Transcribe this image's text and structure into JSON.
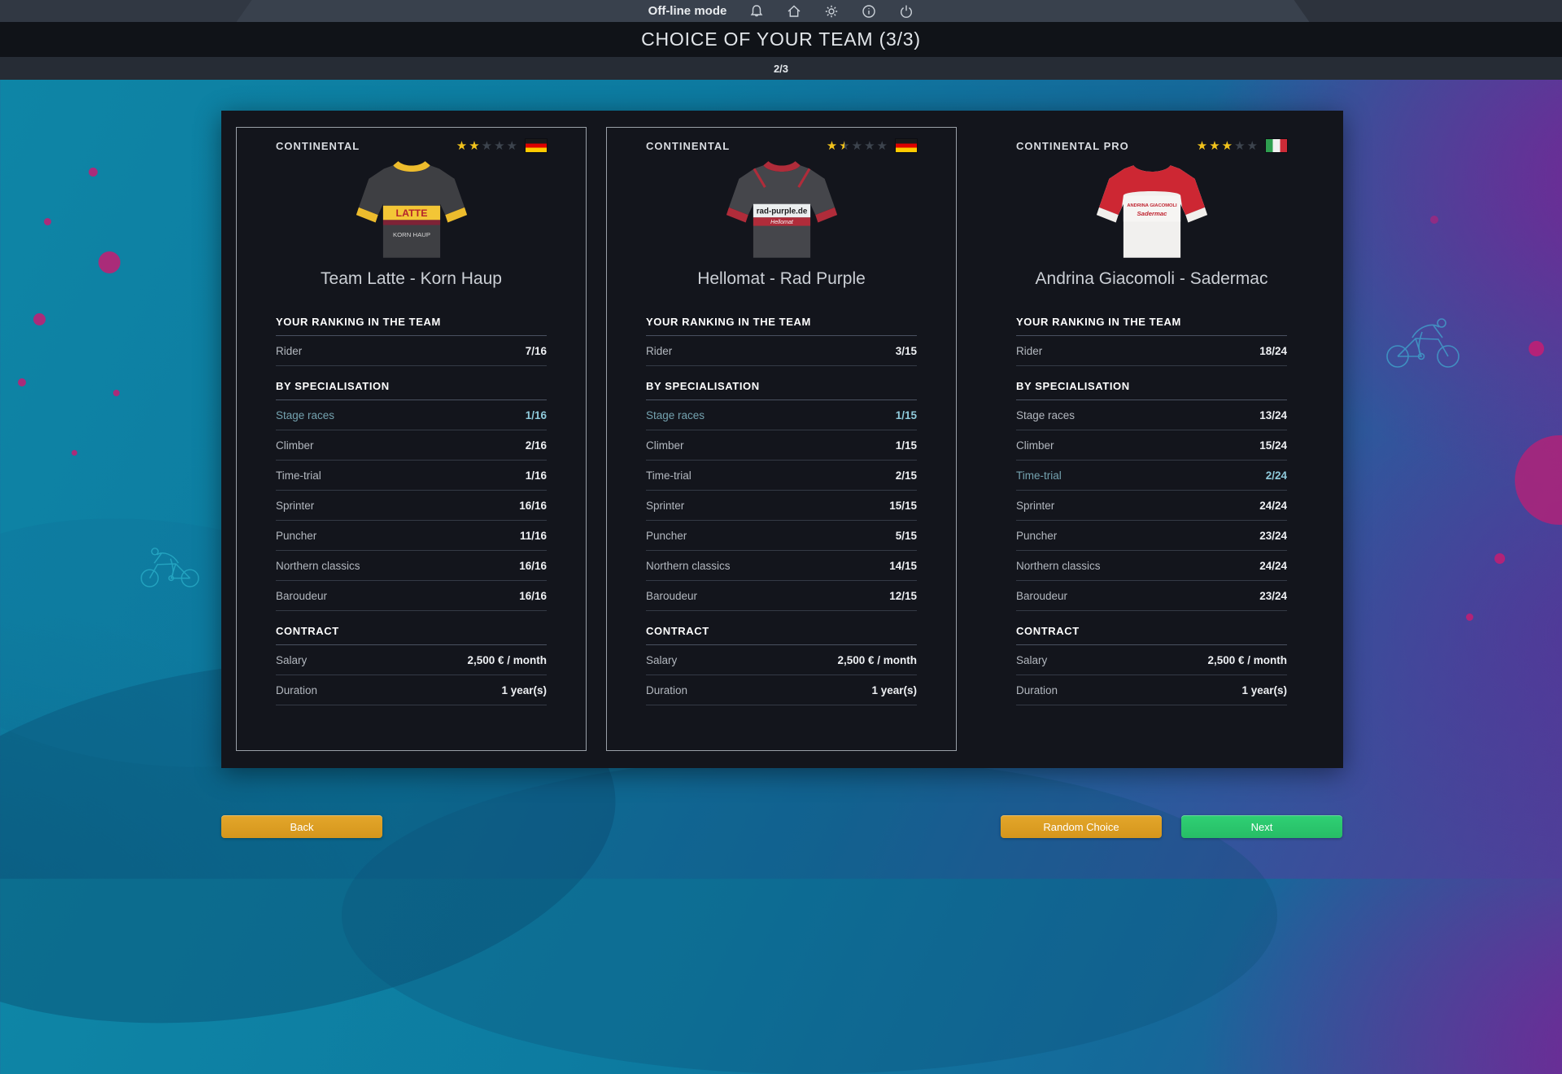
{
  "topbar": {
    "mode_label": "Off-line mode"
  },
  "header": {
    "title": "CHOICE OF YOUR TEAM (3/3)",
    "step": "2/3"
  },
  "labels": {
    "ranking_title": "YOUR RANKING IN THE TEAM",
    "rider": "Rider",
    "specialisation_title": "BY SPECIALISATION",
    "contract_title": "CONTRACT",
    "salary": "Salary",
    "duration": "Duration"
  },
  "teams": [
    {
      "category": "CONTINENTAL",
      "stars": 2,
      "stars_total": 5,
      "country": "Germany",
      "name": "Team Latte - Korn Haup",
      "jersey": {
        "primary_text": "LATTE",
        "secondary_text": "KORN HAUP",
        "body_color": "#3e3f43",
        "accent_color": "#edbc2d",
        "band_text_color": "#b5262c"
      },
      "rider_rank": "7/16",
      "specialisations": [
        {
          "label": "Stage races",
          "value": "1/16",
          "highlight": true
        },
        {
          "label": "Climber",
          "value": "2/16",
          "highlight": false
        },
        {
          "label": "Time-trial",
          "value": "1/16",
          "highlight": false
        },
        {
          "label": "Sprinter",
          "value": "16/16",
          "highlight": false
        },
        {
          "label": "Puncher",
          "value": "11/16",
          "highlight": false
        },
        {
          "label": "Northern classics",
          "value": "16/16",
          "highlight": false
        },
        {
          "label": "Baroudeur",
          "value": "16/16",
          "highlight": false
        }
      ],
      "salary": "2,500 € / month",
      "duration": "1 year(s)"
    },
    {
      "category": "CONTINENTAL",
      "stars": 1.5,
      "stars_total": 5,
      "country": "Germany",
      "name": "Hellomat - Rad Purple",
      "jersey": {
        "primary_text": "rad-purple.de",
        "secondary_text": "Hellomat",
        "body_color": "#45464b",
        "accent_color": "#b02c3a",
        "band_text_color": "#1d1d1f"
      },
      "rider_rank": "3/15",
      "specialisations": [
        {
          "label": "Stage races",
          "value": "1/15",
          "highlight": true
        },
        {
          "label": "Climber",
          "value": "1/15",
          "highlight": false
        },
        {
          "label": "Time-trial",
          "value": "2/15",
          "highlight": false
        },
        {
          "label": "Sprinter",
          "value": "15/15",
          "highlight": false
        },
        {
          "label": "Puncher",
          "value": "5/15",
          "highlight": false
        },
        {
          "label": "Northern classics",
          "value": "14/15",
          "highlight": false
        },
        {
          "label": "Baroudeur",
          "value": "12/15",
          "highlight": false
        }
      ],
      "salary": "2,500 € / month",
      "duration": "1 year(s)"
    },
    {
      "category": "CONTINENTAL PRO",
      "stars": 3,
      "stars_total": 5,
      "country": "Italy",
      "name": "Andrina Giacomoli - Sadermac",
      "jersey": {
        "primary_text": "ANDRINA GIACOMOLI",
        "secondary_text": "Sadermac",
        "body_color": "#f1f0ee",
        "accent_color": "#cd2733",
        "band_text_color": "#c02531"
      },
      "rider_rank": "18/24",
      "specialisations": [
        {
          "label": "Stage races",
          "value": "13/24",
          "highlight": false
        },
        {
          "label": "Climber",
          "value": "15/24",
          "highlight": false
        },
        {
          "label": "Time-trial",
          "value": "2/24",
          "highlight": true
        },
        {
          "label": "Sprinter",
          "value": "24/24",
          "highlight": false
        },
        {
          "label": "Puncher",
          "value": "23/24",
          "highlight": false
        },
        {
          "label": "Northern classics",
          "value": "24/24",
          "highlight": false
        },
        {
          "label": "Baroudeur",
          "value": "23/24",
          "highlight": false
        }
      ],
      "salary": "2,500 € / month",
      "duration": "1 year(s)"
    }
  ],
  "buttons": {
    "back": "Back",
    "random": "Random Choice",
    "next": "Next"
  },
  "colors": {
    "highlight": "#8fcadb",
    "star_active": "#f2c31c",
    "button_orange": "#d5961c",
    "button_green": "#27bd66",
    "panel_bg": "#13151c"
  }
}
